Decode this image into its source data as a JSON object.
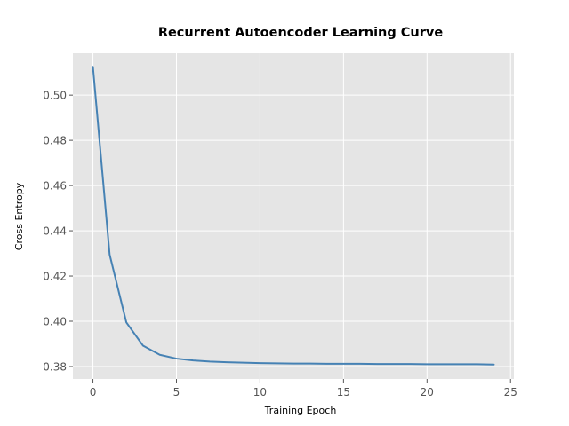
{
  "chart_data": {
    "type": "line",
    "title": "Recurrent Autoencoder Learning Curve",
    "xlabel": "Training Epoch",
    "ylabel": "Cross Entropy",
    "xlim": [
      -1.2,
      25.2
    ],
    "ylim": [
      0.3745,
      0.5185
    ],
    "xticks": [
      0,
      5,
      10,
      15,
      20,
      25
    ],
    "yticks": [
      0.38,
      0.4,
      0.42,
      0.44,
      0.46,
      0.48,
      0.5
    ],
    "grid": true,
    "colors": {
      "plot_background": "#e5e5e5",
      "grid": "#ffffff",
      "line": "#4682b4"
    },
    "series": [
      {
        "x": [
          0,
          1,
          2,
          3,
          4,
          5,
          6,
          7,
          8,
          9,
          10,
          11,
          12,
          13,
          14,
          15,
          16,
          17,
          18,
          19,
          20,
          21,
          22,
          23,
          24
        ],
        "values": [
          0.5125,
          0.4295,
          0.3995,
          0.3892,
          0.3852,
          0.3835,
          0.3827,
          0.3822,
          0.3819,
          0.3817,
          0.3815,
          0.3814,
          0.3813,
          0.3813,
          0.3812,
          0.3812,
          0.3812,
          0.3811,
          0.3811,
          0.3811,
          0.381,
          0.381,
          0.381,
          0.381,
          0.3809
        ]
      }
    ]
  }
}
